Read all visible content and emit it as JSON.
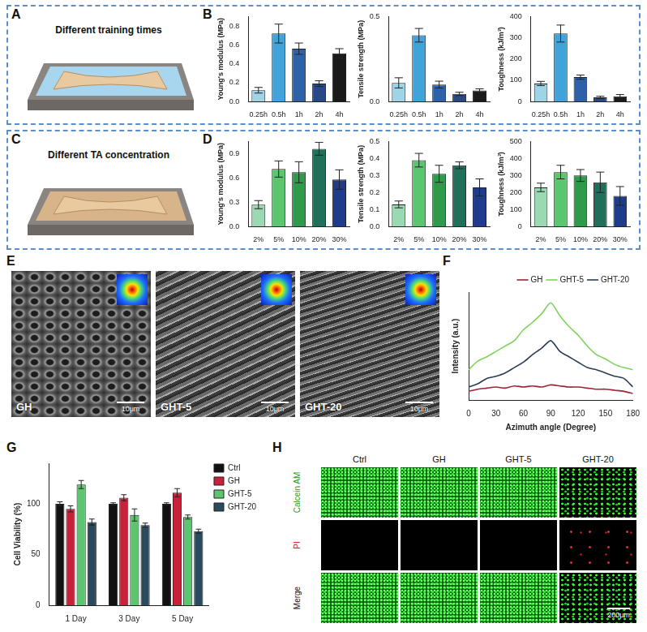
{
  "panel_letters": [
    "A",
    "B",
    "C",
    "D",
    "E",
    "F",
    "G",
    "H"
  ],
  "A": {
    "title": "Different training times"
  },
  "C": {
    "title": "Different TA concentration"
  },
  "E": {
    "images": [
      "GH",
      "GHT-5",
      "GHT-20"
    ],
    "scale_bar": "10μm"
  },
  "H": {
    "columns": [
      "Ctrl",
      "GH",
      "GHT-5",
      "GHT-20"
    ],
    "rows": [
      "Calcein AM",
      "PI",
      "Merge"
    ],
    "scale_bar": "200μm"
  },
  "chart_data": [
    {
      "type": "bar",
      "y_label": "Young's modulus (MPa)",
      "categories": [
        "0.25h",
        "0.5h",
        "1h",
        "2h",
        "4h"
      ],
      "values": [
        0.12,
        0.72,
        0.56,
        0.19,
        0.51
      ],
      "errors": [
        0.03,
        0.1,
        0.06,
        0.03,
        0.05
      ],
      "colors": [
        "#9fd3e6",
        "#41a3d9",
        "#2d62a8",
        "#274a86",
        "#1a1a1a"
      ],
      "ylim": [
        0,
        0.9
      ],
      "yticks": [
        {
          "value": 0,
          "label": "0.0"
        },
        0.2,
        0.4,
        0.6,
        0.8
      ],
      "grid": false
    },
    {
      "type": "bar",
      "y_label": "Tensile strength (MPa)",
      "categories": [
        "0.25h",
        "0.5h",
        "1h",
        "2h",
        "4h"
      ],
      "values": [
        0.11,
        0.39,
        0.1,
        0.045,
        0.065
      ],
      "errors": [
        0.03,
        0.04,
        0.02,
        0.01,
        0.01
      ],
      "colors": [
        "#9fd3e6",
        "#41a3d9",
        "#2d62a8",
        "#274a86",
        "#1a1a1a"
      ],
      "ylim": [
        0,
        0.5
      ],
      "yticks": [
        {
          "value": 0,
          "label": "0.0"
        },
        0.5
      ],
      "grid": false
    },
    {
      "type": "bar",
      "y_label": "Toughness (kJ/m³)",
      "categories": [
        "0.25h",
        "0.5h",
        "1h",
        "2h",
        "4h"
      ],
      "values": [
        85,
        320,
        115,
        20,
        25
      ],
      "errors": [
        10,
        40,
        10,
        5,
        8
      ],
      "colors": [
        "#9fd3e6",
        "#41a3d9",
        "#2d62a8",
        "#274a86",
        "#1a1a1a"
      ],
      "ylim": [
        0,
        400
      ],
      "yticks": [
        0,
        100,
        200,
        300,
        400
      ],
      "grid": false
    },
    {
      "type": "bar",
      "y_label": "Young's modulus (MPa)",
      "categories": [
        "2%",
        "5%",
        "10%",
        "20%",
        "30%"
      ],
      "values": [
        0.27,
        0.71,
        0.67,
        0.96,
        0.58
      ],
      "errors": [
        0.05,
        0.1,
        0.13,
        0.08,
        0.12
      ],
      "colors": [
        "#9ad9b1",
        "#5cc56f",
        "#2e9a4a",
        "#1f6f5a",
        "#1f3c8c"
      ],
      "ylim": [
        0,
        1.05
      ],
      "yticks": [
        {
          "value": 0,
          "label": "0.0"
        },
        0.3,
        0.6,
        0.9
      ],
      "grid": false
    },
    {
      "type": "bar",
      "y_label": "Tensile strength (MPa)",
      "categories": [
        "2%",
        "5%",
        "10%",
        "20%",
        "30%"
      ],
      "values": [
        0.13,
        0.39,
        0.31,
        0.36,
        0.23
      ],
      "errors": [
        0.02,
        0.04,
        0.05,
        0.02,
        0.05
      ],
      "colors": [
        "#9ad9b1",
        "#5cc56f",
        "#2e9a4a",
        "#1f6f5a",
        "#1f3c8c"
      ],
      "ylim": [
        0,
        0.5
      ],
      "yticks": [
        {
          "value": 0,
          "label": "0.0"
        },
        0.1,
        0.2,
        0.3,
        0.4,
        0.5
      ],
      "grid": false
    },
    {
      "type": "bar",
      "y_label": "Toughness (kJ/m³)",
      "categories": [
        "2%",
        "5%",
        "10%",
        "20%",
        "30%"
      ],
      "values": [
        230,
        320,
        300,
        260,
        180
      ],
      "errors": [
        25,
        40,
        35,
        60,
        55
      ],
      "colors": [
        "#9ad9b1",
        "#5cc56f",
        "#2e9a4a",
        "#1f6f5a",
        "#1f3c8c"
      ],
      "ylim": [
        0,
        500
      ],
      "yticks": [
        0,
        100,
        200,
        300,
        400,
        500
      ],
      "grid": false
    },
    {
      "type": "line",
      "x_label": "Azimuth angle (Degree)",
      "y_label": "Intensity (a.u.)",
      "x": [
        0,
        10,
        20,
        30,
        40,
        50,
        60,
        70,
        80,
        90,
        100,
        110,
        120,
        130,
        140,
        150,
        160,
        170,
        180
      ],
      "series": [
        {
          "name": "GH",
          "color": "#9b2335",
          "values": [
            0.08,
            0.1,
            0.11,
            0.12,
            0.11,
            0.13,
            0.12,
            0.13,
            0.12,
            0.14,
            0.13,
            0.12,
            0.12,
            0.11,
            0.1,
            0.1,
            0.09,
            0.08,
            0.06
          ]
        },
        {
          "name": "GHT-5",
          "color": "#7fd35a",
          "values": [
            0.28,
            0.36,
            0.4,
            0.45,
            0.5,
            0.55,
            0.65,
            0.72,
            0.8,
            0.9,
            0.78,
            0.68,
            0.6,
            0.5,
            0.42,
            0.38,
            0.33,
            0.3,
            0.28
          ]
        },
        {
          "name": "GHT-20",
          "color": "#2c3e55",
          "values": [
            0.12,
            0.15,
            0.2,
            0.22,
            0.25,
            0.3,
            0.35,
            0.42,
            0.48,
            0.55,
            0.45,
            0.4,
            0.35,
            0.3,
            0.28,
            0.25,
            0.22,
            0.2,
            0.12
          ]
        }
      ],
      "xlim": [
        0,
        180
      ],
      "xticks": [
        0,
        30,
        60,
        90,
        120,
        150,
        180
      ],
      "ylim": [
        0,
        1
      ],
      "tick_labels": "x",
      "legend": "top-right",
      "grid": false
    },
    {
      "type": "bar",
      "y_label": "Cell Viability (%)",
      "categories": [
        "1 Day",
        "3 Day",
        "5 Day"
      ],
      "series": [
        {
          "name": "Ctrl",
          "color": "#111111",
          "values": [
            100,
            100,
            100
          ],
          "errors": [
            2,
            1,
            1
          ]
        },
        {
          "name": "GH",
          "color": "#c8223a",
          "values": [
            95,
            106,
            111
          ],
          "errors": [
            3,
            3,
            4
          ]
        },
        {
          "name": "GHT-5",
          "color": "#5cc56f",
          "values": [
            119,
            89,
            87
          ],
          "errors": [
            4,
            6,
            2
          ]
        },
        {
          "name": "GHT-20",
          "color": "#2c4a5e",
          "values": [
            82,
            79,
            73
          ],
          "errors": [
            3,
            2,
            2
          ]
        }
      ],
      "ylim": [
        0,
        140
      ],
      "yticks": [
        0,
        50,
        100
      ],
      "legend": "right",
      "grid": false
    }
  ]
}
